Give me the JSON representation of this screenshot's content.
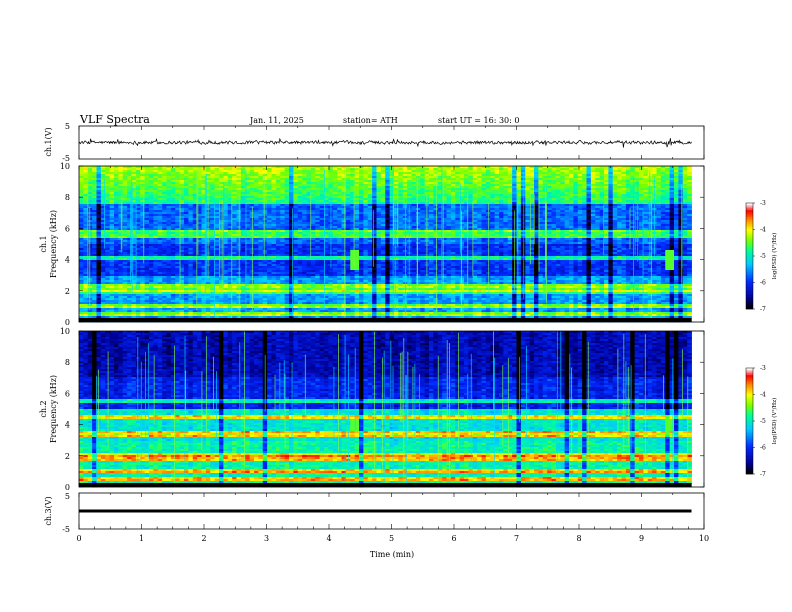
{
  "header": {
    "title": "VLF  Spectra",
    "date": "Jan. 11, 2025",
    "station": "station= ATH",
    "start_ut": "start  UT  =   16: 30: 0"
  },
  "chart_data": [
    {
      "type": "line",
      "panel": "ch1-waveform",
      "ylabel": "ch.1(V)",
      "ylim": [
        -5,
        5
      ],
      "yticks": [
        "5",
        "-5"
      ],
      "xlim": [
        0,
        10
      ],
      "x_data_extent": [
        0,
        9.8
      ],
      "baseline_value": 0,
      "grid": false,
      "description_values": {
        "typical_range": [
          -0.8,
          0.8
        ]
      }
    },
    {
      "type": "heatmap",
      "panel": "ch1-spectrogram",
      "ylabel": "ch.1\nFrequency (kHz)",
      "ylim": [
        0,
        10
      ],
      "yticks": [
        "0",
        "2",
        "4",
        "6",
        "8",
        "10"
      ],
      "xlim": [
        0,
        10
      ],
      "x_data_extent": [
        0,
        9.8
      ],
      "colorbar": {
        "label": "log(PSD) (V²/Hz)",
        "range": [
          -7,
          -3
        ],
        "ticks": [
          "-3",
          "-4",
          "-5",
          "-6",
          "-7"
        ]
      },
      "emission_bands_khz": [
        0.5,
        1.0,
        2.0,
        2.3,
        4.1,
        5.5,
        5.8
      ],
      "bursts_min": [
        4.4,
        9.45
      ]
    },
    {
      "type": "heatmap",
      "panel": "ch2-spectrogram",
      "ylabel": "ch.2\nFrequency (kHz)",
      "ylim": [
        0,
        10
      ],
      "yticks": [
        "0",
        "2",
        "4",
        "6",
        "8",
        "10"
      ],
      "xlim": [
        0,
        10
      ],
      "x_data_extent": [
        0,
        9.8
      ],
      "colorbar": {
        "label": "log(PSD) (V²/Hz)",
        "range": [
          -7,
          -3
        ],
        "ticks": [
          "-3",
          "-4",
          "-5",
          "-6",
          "-7"
        ]
      },
      "emission_bands_khz": [
        0.5,
        1.0,
        1.8,
        2.0,
        3.3,
        3.5,
        4.5,
        5.5
      ],
      "bursts_min": [
        4.4,
        9.45
      ]
    },
    {
      "type": "line",
      "panel": "ch3-waveform",
      "ylabel": "ch.3(V)",
      "ylim": [
        -5,
        5
      ],
      "yticks": [
        "5",
        "-5"
      ],
      "xlim": [
        0,
        10
      ],
      "x_data_extent": [
        0,
        9.8
      ],
      "baseline_value": 0,
      "xlabel": "Time  (min)",
      "xticks": [
        "0",
        "1",
        "2",
        "3",
        "4",
        "5",
        "6",
        "7",
        "8",
        "9",
        "10"
      ]
    }
  ],
  "colors": {
    "colormap": [
      "#000000",
      "#0000a8",
      "#0040ff",
      "#00c8ff",
      "#00ff80",
      "#80ff00",
      "#ffff00",
      "#ff8000",
      "#ff0000",
      "#ffffff"
    ],
    "trace": "#000000",
    "axis": "#000000"
  }
}
